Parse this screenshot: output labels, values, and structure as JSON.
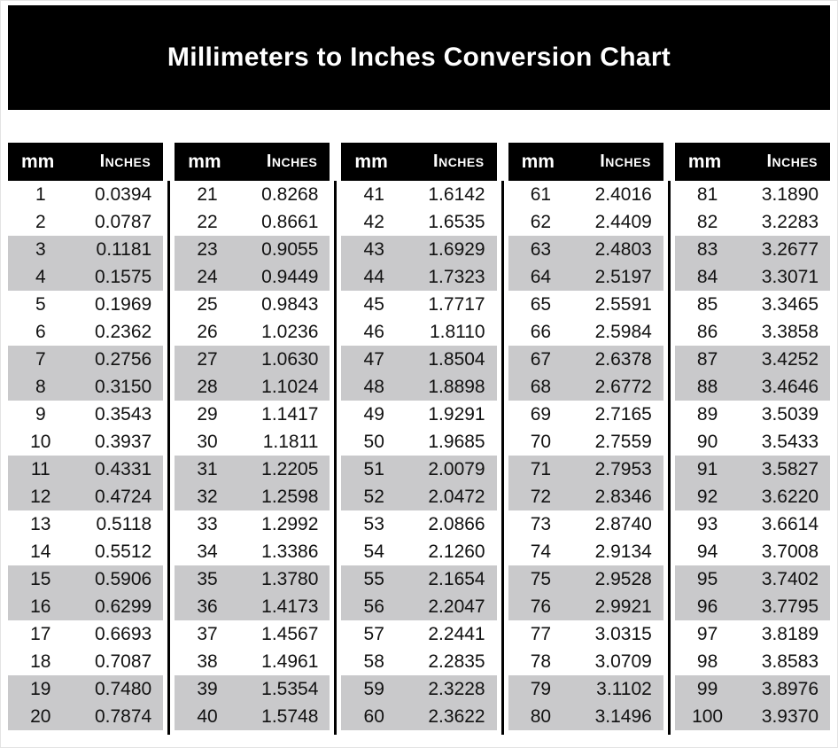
{
  "page": {
    "title": "Millimeters to Inches Conversion Chart"
  },
  "colors": {
    "banner_bg": "#000000",
    "header_bg": "#000000",
    "header_text": "#ffffff",
    "stripe": "#c9c9cb",
    "row_text": "#121212"
  },
  "table": {
    "header": {
      "mm_label": "mm",
      "inches_label": "Inches"
    },
    "groups": [
      {
        "rows": [
          {
            "mm": "1",
            "inches": "0.0394"
          },
          {
            "mm": "2",
            "inches": "0.0787"
          },
          {
            "mm": "3",
            "inches": "0.1181"
          },
          {
            "mm": "4",
            "inches": "0.1575"
          },
          {
            "mm": "5",
            "inches": "0.1969"
          },
          {
            "mm": "6",
            "inches": "0.2362"
          },
          {
            "mm": "7",
            "inches": "0.2756"
          },
          {
            "mm": "8",
            "inches": "0.3150"
          },
          {
            "mm": "9",
            "inches": "0.3543"
          },
          {
            "mm": "10",
            "inches": "0.3937"
          },
          {
            "mm": "11",
            "inches": "0.4331"
          },
          {
            "mm": "12",
            "inches": "0.4724"
          },
          {
            "mm": "13",
            "inches": "0.5118"
          },
          {
            "mm": "14",
            "inches": "0.5512"
          },
          {
            "mm": "15",
            "inches": "0.5906"
          },
          {
            "mm": "16",
            "inches": "0.6299"
          },
          {
            "mm": "17",
            "inches": "0.6693"
          },
          {
            "mm": "18",
            "inches": "0.7087"
          },
          {
            "mm": "19",
            "inches": "0.7480"
          },
          {
            "mm": "20",
            "inches": "0.7874"
          }
        ]
      },
      {
        "rows": [
          {
            "mm": "21",
            "inches": "0.8268"
          },
          {
            "mm": "22",
            "inches": "0.8661"
          },
          {
            "mm": "23",
            "inches": "0.9055"
          },
          {
            "mm": "24",
            "inches": "0.9449"
          },
          {
            "mm": "25",
            "inches": "0.9843"
          },
          {
            "mm": "26",
            "inches": "1.0236"
          },
          {
            "mm": "27",
            "inches": "1.0630"
          },
          {
            "mm": "28",
            "inches": "1.1024"
          },
          {
            "mm": "29",
            "inches": "1.1417"
          },
          {
            "mm": "30",
            "inches": "1.1811"
          },
          {
            "mm": "31",
            "inches": "1.2205"
          },
          {
            "mm": "32",
            "inches": "1.2598"
          },
          {
            "mm": "33",
            "inches": "1.2992"
          },
          {
            "mm": "34",
            "inches": "1.3386"
          },
          {
            "mm": "35",
            "inches": "1.3780"
          },
          {
            "mm": "36",
            "inches": "1.4173"
          },
          {
            "mm": "37",
            "inches": "1.4567"
          },
          {
            "mm": "38",
            "inches": "1.4961"
          },
          {
            "mm": "39",
            "inches": "1.5354"
          },
          {
            "mm": "40",
            "inches": "1.5748"
          }
        ]
      },
      {
        "rows": [
          {
            "mm": "41",
            "inches": "1.6142"
          },
          {
            "mm": "42",
            "inches": "1.6535"
          },
          {
            "mm": "43",
            "inches": "1.6929"
          },
          {
            "mm": "44",
            "inches": "1.7323"
          },
          {
            "mm": "45",
            "inches": "1.7717"
          },
          {
            "mm": "46",
            "inches": "1.8110"
          },
          {
            "mm": "47",
            "inches": "1.8504"
          },
          {
            "mm": "48",
            "inches": "1.8898"
          },
          {
            "mm": "49",
            "inches": "1.9291"
          },
          {
            "mm": "50",
            "inches": "1.9685"
          },
          {
            "mm": "51",
            "inches": "2.0079"
          },
          {
            "mm": "52",
            "inches": "2.0472"
          },
          {
            "mm": "53",
            "inches": "2.0866"
          },
          {
            "mm": "54",
            "inches": "2.1260"
          },
          {
            "mm": "55",
            "inches": "2.1654"
          },
          {
            "mm": "56",
            "inches": "2.2047"
          },
          {
            "mm": "57",
            "inches": "2.2441"
          },
          {
            "mm": "58",
            "inches": "2.2835"
          },
          {
            "mm": "59",
            "inches": "2.3228"
          },
          {
            "mm": "60",
            "inches": "2.3622"
          }
        ]
      },
      {
        "rows": [
          {
            "mm": "61",
            "inches": "2.4016"
          },
          {
            "mm": "62",
            "inches": "2.4409"
          },
          {
            "mm": "63",
            "inches": "2.4803"
          },
          {
            "mm": "64",
            "inches": "2.5197"
          },
          {
            "mm": "65",
            "inches": "2.5591"
          },
          {
            "mm": "66",
            "inches": "2.5984"
          },
          {
            "mm": "67",
            "inches": "2.6378"
          },
          {
            "mm": "68",
            "inches": "2.6772"
          },
          {
            "mm": "69",
            "inches": "2.7165"
          },
          {
            "mm": "70",
            "inches": "2.7559"
          },
          {
            "mm": "71",
            "inches": "2.7953"
          },
          {
            "mm": "72",
            "inches": "2.8346"
          },
          {
            "mm": "73",
            "inches": "2.8740"
          },
          {
            "mm": "74",
            "inches": "2.9134"
          },
          {
            "mm": "75",
            "inches": "2.9528"
          },
          {
            "mm": "76",
            "inches": "2.9921"
          },
          {
            "mm": "77",
            "inches": "3.0315"
          },
          {
            "mm": "78",
            "inches": "3.0709"
          },
          {
            "mm": "79",
            "inches": "3.1102"
          },
          {
            "mm": "80",
            "inches": "3.1496"
          }
        ]
      },
      {
        "rows": [
          {
            "mm": "81",
            "inches": "3.1890"
          },
          {
            "mm": "82",
            "inches": "3.2283"
          },
          {
            "mm": "83",
            "inches": "3.2677"
          },
          {
            "mm": "84",
            "inches": "3.3071"
          },
          {
            "mm": "85",
            "inches": "3.3465"
          },
          {
            "mm": "86",
            "inches": "3.3858"
          },
          {
            "mm": "87",
            "inches": "3.4252"
          },
          {
            "mm": "88",
            "inches": "3.4646"
          },
          {
            "mm": "89",
            "inches": "3.5039"
          },
          {
            "mm": "90",
            "inches": "3.5433"
          },
          {
            "mm": "91",
            "inches": "3.5827"
          },
          {
            "mm": "92",
            "inches": "3.6220"
          },
          {
            "mm": "93",
            "inches": "3.6614"
          },
          {
            "mm": "94",
            "inches": "3.7008"
          },
          {
            "mm": "95",
            "inches": "3.7402"
          },
          {
            "mm": "96",
            "inches": "3.7795"
          },
          {
            "mm": "97",
            "inches": "3.8189"
          },
          {
            "mm": "98",
            "inches": "3.8583"
          },
          {
            "mm": "99",
            "inches": "3.8976"
          },
          {
            "mm": "100",
            "inches": "3.9370"
          }
        ]
      }
    ]
  }
}
